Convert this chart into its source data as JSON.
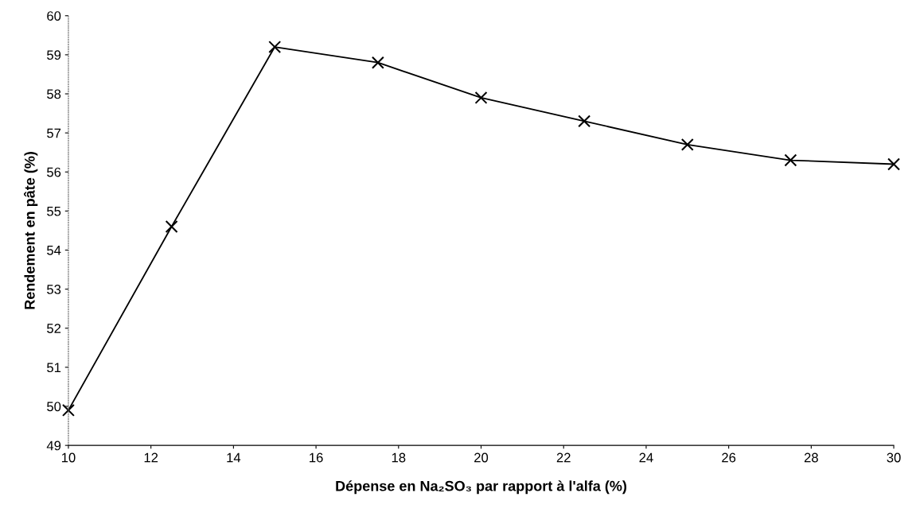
{
  "chart_data": {
    "type": "line",
    "xlabel": "Dépense en Na₂SO₃ par rapport à l'alfa (%)",
    "ylabel": "Rendement en pâte (%)",
    "x": [
      10,
      12.5,
      15,
      17.5,
      20,
      22.5,
      25,
      27.5,
      30
    ],
    "series": [
      {
        "color": "#000000",
        "values": [
          49.9,
          54.6,
          59.2,
          58.8,
          57.9,
          57.3,
          56.7,
          56.3,
          56.2
        ]
      }
    ],
    "xlim": [
      10,
      30
    ],
    "ylim": [
      49,
      60
    ],
    "xticks": [
      10,
      12,
      14,
      16,
      18,
      20,
      22,
      24,
      26,
      28,
      30
    ],
    "yticks": [
      49,
      50,
      51,
      52,
      53,
      54,
      55,
      56,
      57,
      58,
      59,
      60
    ],
    "marker": "cross",
    "line_style": "solid",
    "grid": false
  }
}
